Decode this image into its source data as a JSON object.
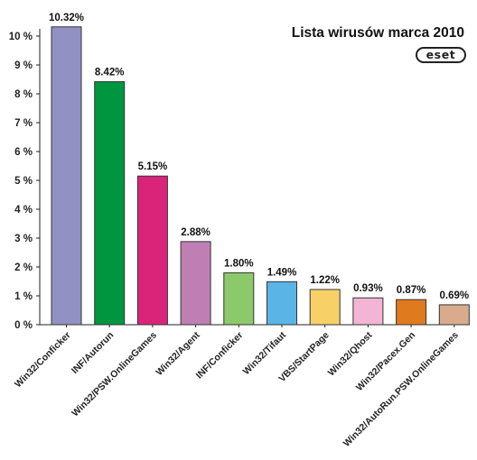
{
  "brand": {
    "logo_text": "eset"
  },
  "chart_data": {
    "type": "bar",
    "title": "Lista wirusów marca 2010",
    "xlabel": "",
    "ylabel": "",
    "ylim": [
      0,
      10.5
    ],
    "yticks": [
      0,
      1,
      2,
      3,
      4,
      5,
      6,
      7,
      8,
      9,
      10
    ],
    "ytick_labels": [
      "0 %",
      "1 %",
      "2 %",
      "3 %",
      "4 %",
      "5 %",
      "6 %",
      "7 %",
      "8 %",
      "9 %",
      "10 %"
    ],
    "grid": false,
    "categories": [
      "Win32/Conficker",
      "INF/Autorun",
      "Win32/PSW.OnlineGames",
      "Win32/Agent",
      "INF/Conficker",
      "Win32/Tifaut",
      "VBS/StartPage",
      "Win32/Qhost",
      "Win32/Pacex.Gen",
      "Win32/AutoRun.PSW.OnlineGames"
    ],
    "values": [
      10.32,
      8.42,
      5.15,
      2.88,
      1.8,
      1.49,
      1.22,
      0.93,
      0.87,
      0.69
    ],
    "data_labels": [
      "10.32%",
      "8.42%",
      "5.15%",
      "2.88%",
      "1.80%",
      "1.49%",
      "1.22%",
      "0.93%",
      "0.87%",
      "0.69%"
    ],
    "colors": [
      "#9191c4",
      "#009640",
      "#d9247a",
      "#bf7fb5",
      "#8cc96a",
      "#5ab4e6",
      "#f7d067",
      "#f2b6d4",
      "#e07a1f",
      "#d9ab8c"
    ]
  }
}
